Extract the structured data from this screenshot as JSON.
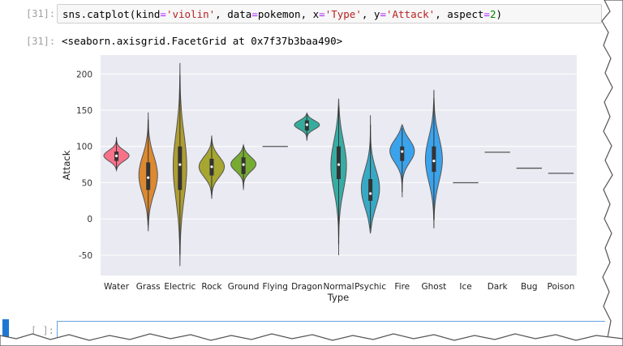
{
  "cells": [
    {
      "input_prompt": "[31]:",
      "output_prompt": "[31]:",
      "code": {
        "fn": "sns.catplot(",
        "k1": "kind",
        "eq1": "=",
        "v1": "'violin'",
        "sep1": ", ",
        "k2": "data",
        "eq2": "=",
        "v2": "pokemon",
        "sep2": ", ",
        "k3": "x",
        "eq3": "=",
        "v3": "'Type'",
        "sep3": ", ",
        "k4": "y",
        "eq4": "=",
        "v4": "'Attack'",
        "sep4": ", ",
        "k5": "aspect",
        "eq5": "=",
        "v5": "2",
        "close": ")"
      },
      "output_text": "<seaborn.axisgrid.FacetGrid at 0x7f37b3baa490>"
    },
    {
      "input_prompt": "[ ]:"
    }
  ],
  "colors": {
    "plot_bg": "#eaeaf2",
    "cell_border": "#cfcfcf",
    "selected_bar": "#1f77d4"
  },
  "chart_data": {
    "type": "violin",
    "xlabel": "Type",
    "ylabel": "Attack",
    "ylim": [
      -78,
      226
    ],
    "yticks": [
      -50,
      0,
      50,
      100,
      150,
      200
    ],
    "grid": true,
    "categories": [
      "Water",
      "Grass",
      "Electric",
      "Rock",
      "Ground",
      "Flying",
      "Dragon",
      "Normal",
      "Psychic",
      "Fire",
      "Ghost",
      "Ice",
      "Dark",
      "Bug",
      "Poison"
    ],
    "series": [
      {
        "category": "Water",
        "color": "#f77189",
        "min": 67,
        "max": 113,
        "q1": 80,
        "median": 87,
        "q3": 93,
        "peak": 87
      },
      {
        "category": "Grass",
        "color": "#dc8932",
        "min": -17,
        "max": 147,
        "q1": 40,
        "median": 57,
        "q3": 78,
        "peak": 60
      },
      {
        "category": "Electric",
        "color": "#ae9d31",
        "min": -65,
        "max": 215,
        "q1": 40,
        "median": 75,
        "q3": 100,
        "peak": 72
      },
      {
        "category": "Rock",
        "color": "#a6a631",
        "min": 28,
        "max": 115,
        "q1": 60,
        "median": 72,
        "q3": 83,
        "peak": 72
      },
      {
        "category": "Ground",
        "color": "#77ab31",
        "min": 40,
        "max": 102,
        "q1": 62,
        "median": 75,
        "q3": 85,
        "peak": 76
      },
      {
        "category": "Flying",
        "color": "#33b07a",
        "value": 100
      },
      {
        "category": "Dragon",
        "color": "#35ad9c",
        "min": 108,
        "max": 146,
        "q1": 122,
        "median": 130,
        "q3": 136,
        "peak": 130
      },
      {
        "category": "Normal",
        "color": "#36ada4",
        "min": -50,
        "max": 166,
        "q1": 55,
        "median": 75,
        "q3": 100,
        "peak": 75
      },
      {
        "category": "Psychic",
        "color": "#38a9c5",
        "min": -20,
        "max": 143,
        "q1": 25,
        "median": 35,
        "q3": 55,
        "peak": 40
      },
      {
        "category": "Fire",
        "color": "#3ba3ec",
        "min": 30,
        "max": 130,
        "q1": 80,
        "median": 93,
        "q3": 100,
        "peak": 95
      },
      {
        "category": "Ghost",
        "color": "#3ba3ec",
        "min": -13,
        "max": 178,
        "q1": 65,
        "median": 80,
        "q3": 100,
        "peak": 82
      },
      {
        "category": "Ice",
        "color": "#6e8fd6",
        "value": 50
      },
      {
        "category": "Dark",
        "color": "#a48cf4",
        "value": 92
      },
      {
        "category": "Bug",
        "color": "#cc7af4",
        "value": 70
      },
      {
        "category": "Poison",
        "color": "#f45fcb",
        "value": 63
      }
    ]
  }
}
